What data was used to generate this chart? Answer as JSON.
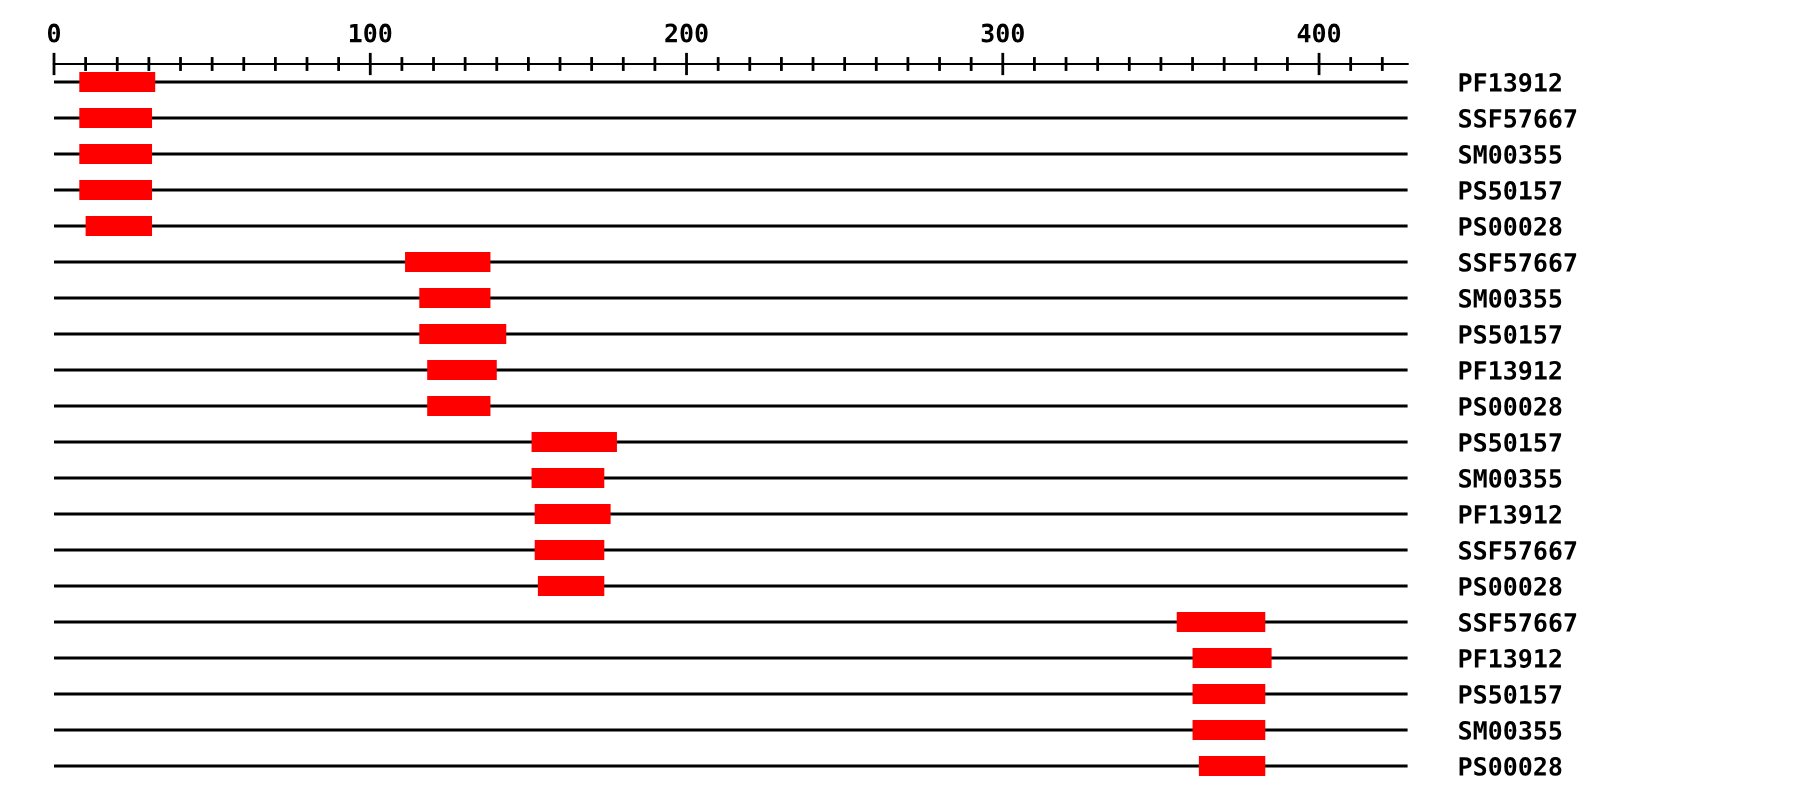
{
  "chart_data": {
    "type": "bar",
    "orientation": "horizontal",
    "color": "#ff0000",
    "categories": [
      "PF13912",
      "SSF57667",
      "SM00355",
      "PS50157",
      "PS00028",
      "SSF57667",
      "SM00355",
      "PS50157",
      "PF13912",
      "PS00028",
      "PS50157",
      "SM00355",
      "PF13912",
      "SSF57667",
      "PS00028",
      "SSF57667",
      "PF13912",
      "PS50157",
      "SM00355",
      "PS00028"
    ],
    "base": [
      8,
      8,
      8,
      8,
      10,
      111,
      115.5,
      115.5,
      118,
      118,
      151,
      151,
      152,
      152,
      153,
      355,
      360,
      360,
      360,
      362
    ],
    "values": [
      24,
      23,
      23,
      23,
      21,
      27,
      22.5,
      27.5,
      22,
      20,
      27,
      23,
      24,
      22,
      21,
      28,
      25,
      23,
      23,
      21
    ],
    "xlim": [
      0,
      428
    ],
    "xticks": [
      0,
      {
        "value": 10,
        "label": null
      },
      {
        "value": 20,
        "label": null
      },
      {
        "value": 30,
        "label": null
      },
      {
        "value": 40,
        "label": null
      },
      {
        "value": 50,
        "label": null
      },
      {
        "value": 60,
        "label": null
      },
      {
        "value": 70,
        "label": null
      },
      {
        "value": 80,
        "label": null
      },
      {
        "value": 90,
        "label": null
      },
      100,
      {
        "value": 110,
        "label": null
      },
      {
        "value": 120,
        "label": null
      },
      {
        "value": 130,
        "label": null
      },
      {
        "value": 140,
        "label": null
      },
      {
        "value": 150,
        "label": null
      },
      {
        "value": 160,
        "label": null
      },
      {
        "value": 170,
        "label": null
      },
      {
        "value": 180,
        "label": null
      },
      {
        "value": 190,
        "label": null
      },
      200,
      {
        "value": 210,
        "label": null
      },
      {
        "value": 220,
        "label": null
      },
      {
        "value": 230,
        "label": null
      },
      {
        "value": 240,
        "label": null
      },
      {
        "value": 250,
        "label": null
      },
      {
        "value": 260,
        "label": null
      },
      {
        "value": 270,
        "label": null
      },
      {
        "value": 280,
        "label": null
      },
      {
        "value": 290,
        "label": null
      },
      300,
      {
        "value": 310,
        "label": null
      },
      {
        "value": 320,
        "label": null
      },
      {
        "value": 330,
        "label": null
      },
      {
        "value": 340,
        "label": null
      },
      {
        "value": 350,
        "label": null
      },
      {
        "value": 360,
        "label": null
      },
      {
        "value": 370,
        "label": null
      },
      {
        "value": 380,
        "label": null
      },
      {
        "value": 390,
        "label": null
      },
      400,
      {
        "value": 410,
        "label": null
      },
      {
        "value": 420,
        "label": null
      }
    ],
    "grid": "y"
  }
}
